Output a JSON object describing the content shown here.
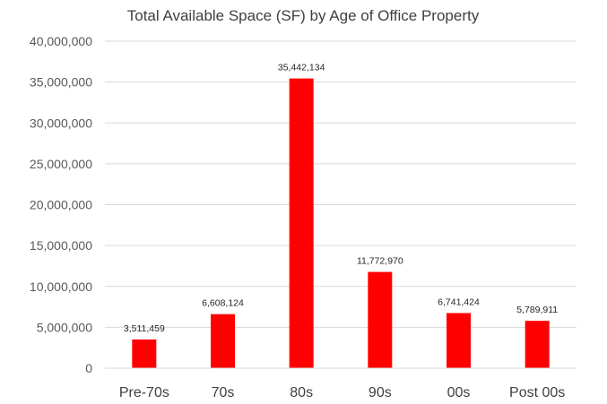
{
  "chart_data": {
    "type": "bar",
    "title": "Total Available Space (SF) by Age of Office Property",
    "categories": [
      "Pre-70s",
      "70s",
      "80s",
      "90s",
      "00s",
      "Post 00s"
    ],
    "values": [
      3511459,
      6608124,
      35442134,
      11772970,
      6741424,
      5789911
    ],
    "value_labels": [
      "3,511,459",
      "6,608,124",
      "35,442,134",
      "11,772,970",
      "6,741,424",
      "5,789,911"
    ],
    "ylim": [
      0,
      40000000
    ],
    "yticks": [
      0,
      5000000,
      10000000,
      15000000,
      20000000,
      25000000,
      30000000,
      35000000,
      40000000
    ],
    "ytick_labels": [
      "0",
      "5,000,000",
      "10,000,000",
      "15,000,000",
      "20,000,000",
      "25,000,000",
      "30,000,000",
      "35,000,000",
      "40,000,000"
    ],
    "xlabel": "",
    "ylabel": "",
    "grid": true,
    "legend": "none",
    "bar_color": "#FF0000",
    "grid_color": "#D9D9D9"
  }
}
